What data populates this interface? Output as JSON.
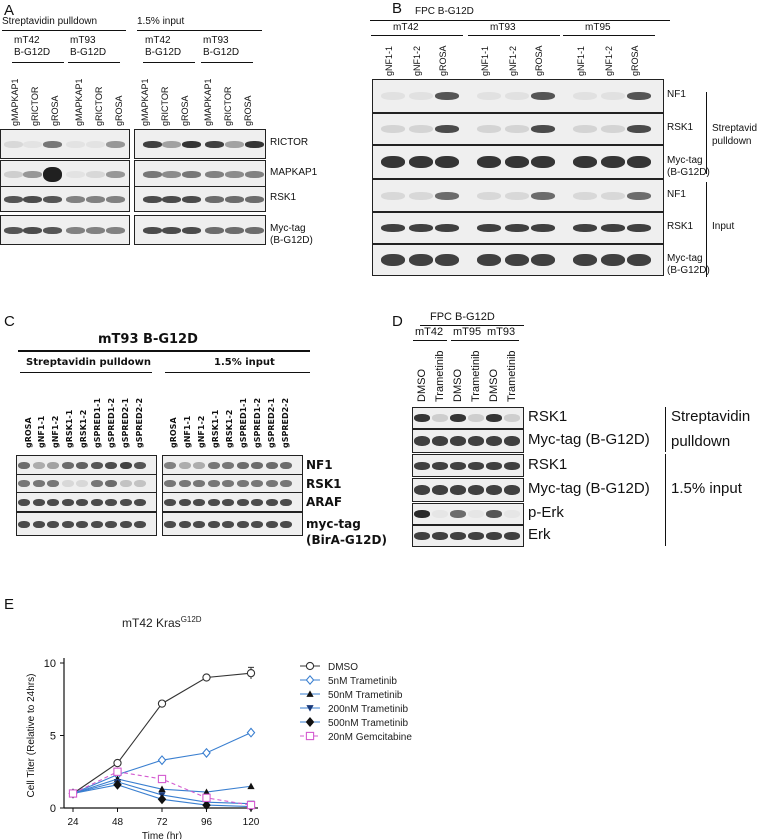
{
  "panel_A": {
    "label": "A",
    "group1": "Streptavidin pulldown",
    "group2": "1.5% input",
    "cellline1": "mT42\nB-G12D",
    "cellline2": "mT93\nB-G12D",
    "lanes": [
      "gMAPKAP1",
      "gRICTOR",
      "gROSA",
      "gMAPKAP1",
      "gRICTOR",
      "gROSA"
    ],
    "rows": [
      "RICTOR",
      "MAPKAP1",
      "RSK1",
      "Myc-tag\n(B-G12D)"
    ]
  },
  "panel_B": {
    "label": "B",
    "title": "FPC B-G12D",
    "groups": [
      "mT42",
      "mT93",
      "mT95"
    ],
    "lanes": [
      "gNF1-1",
      "gNF1-2",
      "gROSA",
      "gNF1-1",
      "gNF1-2",
      "gROSA",
      "gNF1-1",
      "gNF1-2",
      "gROSA"
    ],
    "rows": [
      "NF1",
      "RSK1",
      "Myc-tag\n(B-G12D)",
      "NF1",
      "RSK1",
      "Myc-tag\n(B-G12D)"
    ],
    "section1": "Streptavidin\npulldown",
    "section2": "Input"
  },
  "panel_C": {
    "label": "C",
    "title": "mT93 B-G12D",
    "group1": "Streptavidin pulldown",
    "group2": "1.5% input",
    "lanes": [
      "gROSA",
      "gNF1-1",
      "gNF1-2",
      "gRSK1-1",
      "gRSK1-2",
      "gSPRED1-1",
      "gSPRED1-2",
      "gSPRED2-1",
      "gSPRED2-2"
    ],
    "rows": [
      "NF1",
      "RSK1",
      "ARAF",
      "myc-tag\n(BirA-G12D)"
    ]
  },
  "panel_D": {
    "label": "D",
    "title": "FPC B-G12D",
    "groups": [
      "mT42",
      "mT95",
      "mT93"
    ],
    "lanes": [
      "DMSO",
      "Trametinib",
      "DMSO",
      "Trametinib",
      "DMSO",
      "Trametinib"
    ],
    "rows": [
      "RSK1",
      "Myc-tag (B-G12D)",
      "RSK1",
      "Myc-tag (B-G12D)",
      "p-Erk",
      "Erk"
    ],
    "section1": "Streptavidin\npulldown",
    "section2": "1.5% input"
  },
  "panel_E": {
    "label": "E",
    "title": "mT42 Kras",
    "title_sup": "G12D",
    "chart_data": {
      "type": "line",
      "title": "mT42 KrasG12D",
      "xlabel": "Time (hr)",
      "ylabel": "Cell Titer  (Relative to 24hrs)",
      "x": [
        24,
        48,
        72,
        96,
        120
      ],
      "xlim": [
        24,
        120
      ],
      "ylim": [
        0,
        10
      ],
      "yticks": [
        0,
        5,
        10
      ],
      "legend_position": "right",
      "series": [
        {
          "name": "DMSO",
          "values": [
            1.0,
            3.1,
            7.2,
            9.0,
            9.3
          ],
          "color": "#333333",
          "marker": "circle-open",
          "dash": false
        },
        {
          "name": "5nM Trametinib",
          "values": [
            1.0,
            2.3,
            3.3,
            3.8,
            5.2
          ],
          "color": "#3a7fd0",
          "marker": "diamond-open",
          "dash": false
        },
        {
          "name": "50nM Trametinib",
          "values": [
            1.0,
            2.0,
            1.3,
            1.1,
            1.5
          ],
          "color": "#3a7fd0",
          "marker": "triangle-up",
          "dash": false
        },
        {
          "name": "200nM Trametinib",
          "values": [
            1.0,
            1.8,
            0.9,
            0.4,
            0.3
          ],
          "color": "#3a7fd0",
          "marker": "triangle-down",
          "dash": false
        },
        {
          "name": "500nM Trametinib",
          "values": [
            1.0,
            1.6,
            0.6,
            0.2,
            0.1
          ],
          "color": "#3a7fd0",
          "marker": "diamond",
          "dash": false
        },
        {
          "name": "20nM Gemcitabine",
          "values": [
            1.0,
            2.5,
            2.0,
            0.7,
            0.2
          ],
          "color": "#d45bd0",
          "marker": "square-open",
          "dash": true
        }
      ]
    }
  }
}
